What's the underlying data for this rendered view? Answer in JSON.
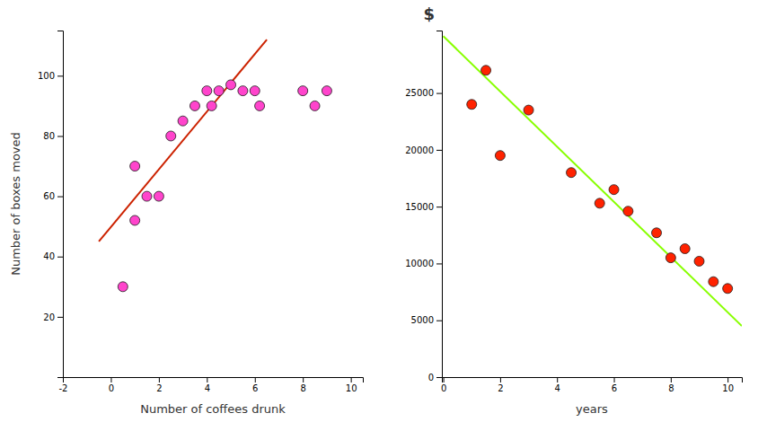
{
  "chart_data": [
    {
      "type": "scatter",
      "xlabel": "Number of coffees drunk",
      "ylabel": "Number of boxes moved",
      "xlim": [
        -2,
        10.5
      ],
      "ylim": [
        0,
        115
      ],
      "xticks": [
        -2,
        0,
        2,
        4,
        6,
        8,
        10
      ],
      "yticks": [
        20,
        40,
        60,
        80,
        100
      ],
      "series": [
        {
          "type": "scatter",
          "color": "#ff44cc",
          "x": [
            0.5,
            1.0,
            1.0,
            1.5,
            2.0,
            2.5,
            3.0,
            3.5,
            4.0,
            4.2,
            4.5,
            5.0,
            5.5,
            6.0,
            6.2,
            8.0,
            8.5,
            9.0
          ],
          "values": [
            30,
            52,
            70,
            60,
            60,
            80,
            85,
            90,
            95,
            90,
            95,
            97,
            95,
            95,
            90,
            95,
            90,
            95
          ]
        },
        {
          "type": "line",
          "color": "#cc2200",
          "x": [
            -0.5,
            6.5
          ],
          "values": [
            45,
            112
          ]
        }
      ]
    },
    {
      "type": "scatter",
      "xlabel": "years",
      "ylabel": "$",
      "xlim": [
        -0.05,
        10.5
      ],
      "ylim": [
        0,
        30500
      ],
      "xticks": [
        0,
        2,
        4,
        6,
        8,
        10
      ],
      "yticks": [
        0,
        5000,
        10000,
        15000,
        20000,
        25000
      ],
      "series": [
        {
          "type": "scatter",
          "color": "#ff2200",
          "x": [
            1.0,
            1.5,
            2.0,
            3.0,
            4.5,
            5.5,
            6.0,
            6.5,
            7.5,
            8.0,
            8.5,
            9.0,
            9.5,
            10.0
          ],
          "values": [
            24000,
            27000,
            19500,
            23500,
            18000,
            15300,
            16500,
            14600,
            12700,
            10500,
            11300,
            10200,
            8400,
            7800
          ]
        },
        {
          "type": "line",
          "color": "#88ff00",
          "x": [
            0,
            10.5
          ],
          "values": [
            30000,
            4500
          ]
        }
      ]
    }
  ]
}
